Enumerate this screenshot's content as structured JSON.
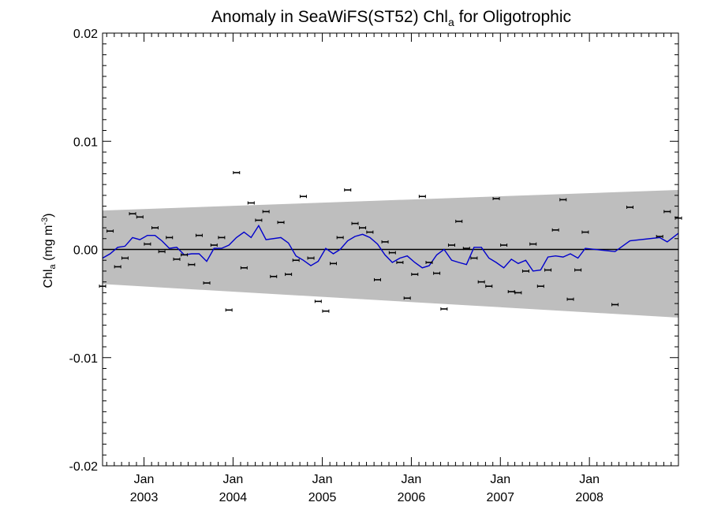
{
  "chart_data": {
    "type": "line",
    "title": "Anomaly in SeaWiFS(ST52) Chl",
    "title_subscript": "a",
    "title_suffix": " for Oligotrophic",
    "ylabel": "Chl",
    "ylabel_subscript": "a",
    "ylabel_units": " (mg m",
    "ylabel_units_sup": "-3",
    "ylabel_units_close": ")",
    "ylim": [
      -0.02,
      0.02
    ],
    "yticks": [
      0.02,
      0.01,
      0.0,
      -0.01,
      -0.02
    ],
    "ytick_labels": [
      "0.02",
      "0.01",
      "0.00",
      "-0.01",
      "-0.02"
    ],
    "xlim": [
      "2002-07-15",
      "2008-12-31"
    ],
    "xticks": [
      {
        "date": "2003-01-01",
        "month": "Jan",
        "year": "2003"
      },
      {
        "date": "2004-01-01",
        "month": "Jan",
        "year": "2004"
      },
      {
        "date": "2005-01-01",
        "month": "Jan",
        "year": "2005"
      },
      {
        "date": "2006-01-01",
        "month": "Jan",
        "year": "2006"
      },
      {
        "date": "2007-01-01",
        "month": "Jan",
        "year": "2007"
      },
      {
        "date": "2008-01-01",
        "month": "Jan",
        "year": "2008"
      }
    ],
    "band": {
      "color": "#bebebe",
      "start": {
        "date": "2002-07-15",
        "upper": 0.0036,
        "lower": -0.0032
      },
      "end": {
        "date": "2008-12-31",
        "upper": 0.0055,
        "lower": -0.0063
      }
    },
    "zero_line_color": "#000000",
    "smoothed_series": {
      "color": "#0000cc",
      "points": [
        [
          "2002-07-15",
          -0.0008
        ],
        [
          "2002-08-15",
          -0.0004
        ],
        [
          "2002-09-15",
          0.0002
        ],
        [
          "2002-10-15",
          0.0003
        ],
        [
          "2002-11-15",
          0.0011
        ],
        [
          "2002-12-15",
          0.0009
        ],
        [
          "2003-01-15",
          0.0013
        ],
        [
          "2003-02-15",
          0.0013
        ],
        [
          "2003-03-15",
          0.0008
        ],
        [
          "2003-04-15",
          0.0001
        ],
        [
          "2003-05-15",
          0.0002
        ],
        [
          "2003-06-15",
          -0.0005
        ],
        [
          "2003-07-15",
          -0.0004
        ],
        [
          "2003-08-15",
          -0.0004
        ],
        [
          "2003-09-15",
          -0.0011
        ],
        [
          "2003-10-15",
          0.0001
        ],
        [
          "2003-11-15",
          0.0001
        ],
        [
          "2003-12-15",
          0.0004
        ],
        [
          "2004-01-15",
          0.0011
        ],
        [
          "2004-02-15",
          0.0016
        ],
        [
          "2004-03-15",
          0.0011
        ],
        [
          "2004-04-15",
          0.0022
        ],
        [
          "2004-05-15",
          0.0009
        ],
        [
          "2004-07-15",
          0.0011
        ],
        [
          "2004-08-15",
          0.0006
        ],
        [
          "2004-09-15",
          -0.0006
        ],
        [
          "2004-10-15",
          -0.001
        ],
        [
          "2004-11-15",
          -0.0015
        ],
        [
          "2004-12-15",
          -0.0011
        ],
        [
          "2005-01-15",
          0.0001
        ],
        [
          "2005-02-15",
          -0.0004
        ],
        [
          "2005-03-15",
          0.0
        ],
        [
          "2005-04-15",
          0.0008
        ],
        [
          "2005-05-15",
          0.0012
        ],
        [
          "2005-06-15",
          0.0014
        ],
        [
          "2005-07-15",
          0.0011
        ],
        [
          "2005-08-15",
          0.0005
        ],
        [
          "2005-09-15",
          -0.0005
        ],
        [
          "2005-10-15",
          -0.0012
        ],
        [
          "2005-11-15",
          -0.0008
        ],
        [
          "2005-12-15",
          -0.0006
        ],
        [
          "2006-01-15",
          -0.0012
        ],
        [
          "2006-02-15",
          -0.0017
        ],
        [
          "2006-03-15",
          -0.0015
        ],
        [
          "2006-04-15",
          -0.0005
        ],
        [
          "2006-05-15",
          0.0
        ],
        [
          "2006-06-15",
          -0.001
        ],
        [
          "2006-07-15",
          -0.0012
        ],
        [
          "2006-08-15",
          -0.0014
        ],
        [
          "2006-09-15",
          0.0002
        ],
        [
          "2006-10-15",
          0.0002
        ],
        [
          "2006-11-15",
          -0.0008
        ],
        [
          "2006-12-15",
          -0.0012
        ],
        [
          "2007-01-15",
          -0.0017
        ],
        [
          "2007-02-15",
          -0.0009
        ],
        [
          "2007-03-15",
          -0.0013
        ],
        [
          "2007-04-15",
          -0.001
        ],
        [
          "2007-05-15",
          -0.002
        ],
        [
          "2007-06-15",
          -0.0019
        ],
        [
          "2007-07-15",
          -0.0007
        ],
        [
          "2007-08-15",
          -0.0006
        ],
        [
          "2007-09-15",
          -0.0007
        ],
        [
          "2007-10-15",
          -0.0004
        ],
        [
          "2007-11-15",
          -0.0008
        ],
        [
          "2007-12-15",
          0.0001
        ],
        [
          "2008-04-15",
          -0.0002
        ],
        [
          "2008-06-15",
          0.0008
        ],
        [
          "2008-10-15",
          0.0011
        ],
        [
          "2008-11-15",
          0.0007
        ],
        [
          "2008-12-31",
          0.0015
        ]
      ]
    },
    "monthly_points": [
      [
        "2002-07-15",
        -0.0034
      ],
      [
        "2002-08-15",
        0.0017
      ],
      [
        "2002-09-15",
        -0.0016
      ],
      [
        "2002-10-15",
        -0.0008
      ],
      [
        "2002-11-15",
        0.0033
      ],
      [
        "2002-12-15",
        0.003
      ],
      [
        "2003-01-15",
        0.0005
      ],
      [
        "2003-02-15",
        0.002
      ],
      [
        "2003-03-15",
        -0.0002
      ],
      [
        "2003-04-15",
        0.0011
      ],
      [
        "2003-05-15",
        -0.0009
      ],
      [
        "2003-06-15",
        -0.0005
      ],
      [
        "2003-07-15",
        -0.0014
      ],
      [
        "2003-08-15",
        0.0013
      ],
      [
        "2003-09-15",
        -0.0031
      ],
      [
        "2003-10-15",
        0.0004
      ],
      [
        "2003-11-15",
        0.0011
      ],
      [
        "2003-12-15",
        -0.0056
      ],
      [
        "2004-01-15",
        0.0071
      ],
      [
        "2004-02-15",
        -0.0017
      ],
      [
        "2004-03-15",
        0.0043
      ],
      [
        "2004-04-15",
        0.0027
      ],
      [
        "2004-05-15",
        0.0035
      ],
      [
        "2004-06-15",
        -0.0025
      ],
      [
        "2004-07-15",
        0.0025
      ],
      [
        "2004-08-15",
        -0.0023
      ],
      [
        "2004-09-15",
        -0.001
      ],
      [
        "2004-10-15",
        0.0049
      ],
      [
        "2004-11-15",
        -0.0008
      ],
      [
        "2004-12-15",
        -0.0048
      ],
      [
        "2005-01-15",
        -0.0057
      ],
      [
        "2005-02-15",
        -0.0013
      ],
      [
        "2005-03-15",
        0.0011
      ],
      [
        "2005-04-15",
        0.0055
      ],
      [
        "2005-05-15",
        0.0024
      ],
      [
        "2005-06-15",
        0.002
      ],
      [
        "2005-07-15",
        0.0016
      ],
      [
        "2005-08-15",
        -0.0028
      ],
      [
        "2005-09-15",
        0.0007
      ],
      [
        "2005-10-15",
        -0.0003
      ],
      [
        "2005-11-15",
        -0.0012
      ],
      [
        "2005-12-15",
        -0.0045
      ],
      [
        "2006-01-15",
        -0.0023
      ],
      [
        "2006-02-15",
        0.0049
      ],
      [
        "2006-03-15",
        -0.0012
      ],
      [
        "2006-04-15",
        -0.0022
      ],
      [
        "2006-05-15",
        -0.0055
      ],
      [
        "2006-06-15",
        0.0004
      ],
      [
        "2006-07-15",
        0.0026
      ],
      [
        "2006-08-15",
        0.0001
      ],
      [
        "2006-09-15",
        -0.0008
      ],
      [
        "2006-10-15",
        -0.003
      ],
      [
        "2006-11-15",
        -0.0034
      ],
      [
        "2006-12-15",
        0.0047
      ],
      [
        "2007-01-15",
        0.0004
      ],
      [
        "2007-02-15",
        -0.0039
      ],
      [
        "2007-03-15",
        -0.004
      ],
      [
        "2007-04-15",
        -0.002
      ],
      [
        "2007-05-15",
        0.0005
      ],
      [
        "2007-06-15",
        -0.0034
      ],
      [
        "2007-07-15",
        -0.0019
      ],
      [
        "2007-08-15",
        0.0018
      ],
      [
        "2007-09-15",
        0.0046
      ],
      [
        "2007-10-15",
        -0.0046
      ],
      [
        "2007-11-15",
        -0.0019
      ],
      [
        "2007-12-15",
        0.0016
      ],
      [
        "2008-04-15",
        -0.0051
      ],
      [
        "2008-06-15",
        0.0039
      ],
      [
        "2008-10-15",
        0.0012
      ],
      [
        "2008-11-15",
        0.0035
      ],
      [
        "2008-12-31",
        0.0029
      ]
    ]
  }
}
